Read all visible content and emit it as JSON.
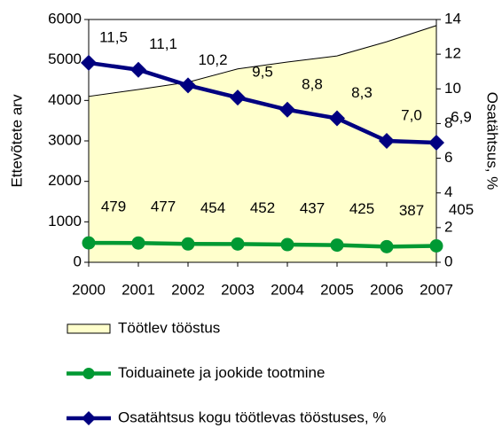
{
  "chart_data": {
    "type": "line",
    "categories": [
      "2000",
      "2001",
      "2002",
      "2003",
      "2004",
      "2005",
      "2006",
      "2007"
    ],
    "y_label": "Ettevõtete arv",
    "y2_label": "Osatähtsus, %",
    "ylim": [
      0,
      6000
    ],
    "yticks": [
      0,
      1000,
      2000,
      3000,
      4000,
      5000,
      6000
    ],
    "y2lim": [
      0,
      14
    ],
    "y2ticks": [
      0,
      2,
      4,
      6,
      8,
      10,
      12,
      14
    ],
    "series": [
      {
        "name": "Töötlev tööstus",
        "color": "#ffffcc",
        "area": true,
        "values": [
          4100,
          4270,
          4450,
          4780,
          4950,
          5100,
          5450,
          5850
        ]
      },
      {
        "name": "Toiduainete ja jookide tootmine",
        "color": "#009933",
        "marker": "circle",
        "values": [
          479,
          477,
          454,
          452,
          437,
          425,
          387,
          405
        ]
      },
      {
        "name": "Osatähtsus kogu töötlevas tööstuses, %",
        "color": "#000080",
        "marker": "diamond",
        "axis": "y2",
        "values": [
          11.5,
          11.1,
          10.2,
          9.5,
          8.8,
          8.3,
          7.0,
          6.9
        ],
        "value_labels": [
          "11,5",
          "11,1",
          "10,2",
          "9,5",
          "8,8",
          "8,3",
          "7,0",
          "6,9"
        ]
      }
    ]
  }
}
